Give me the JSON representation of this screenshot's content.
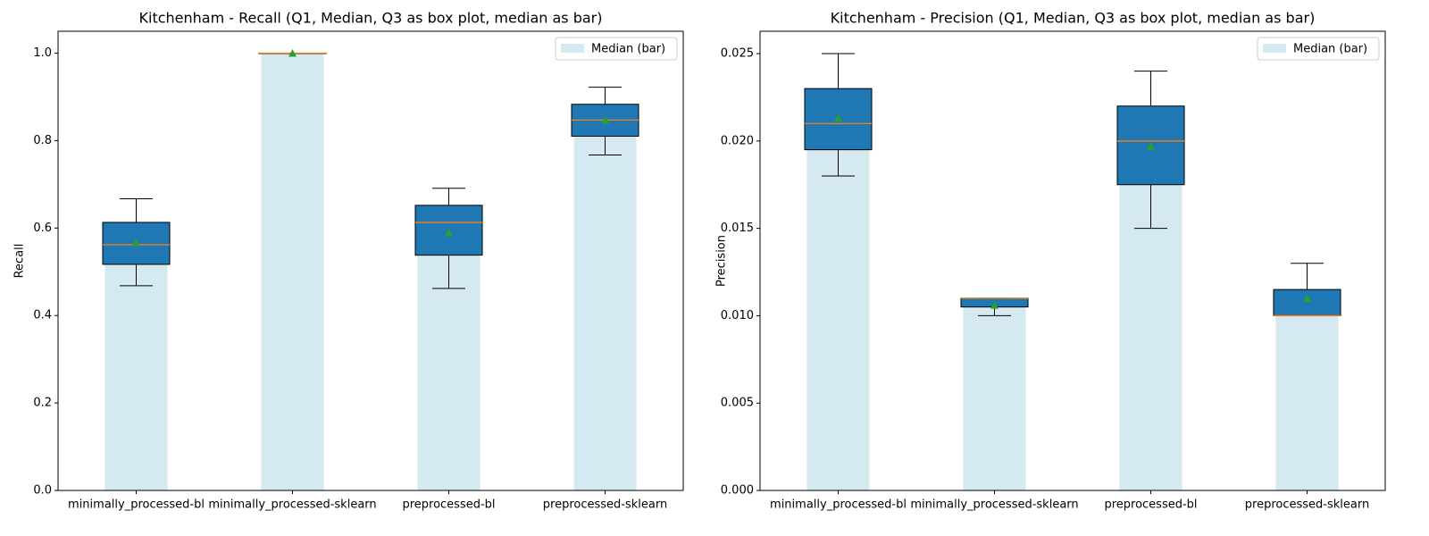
{
  "chart_data": [
    {
      "type": "box",
      "title": "Kitchenham - Recall (Q1, Median, Q3 as box plot, median as bar)",
      "ylabel": "Recall",
      "categories": [
        "minimally_processed-bl",
        "minimally_processed-sklearn",
        "preprocessed-bl",
        "preprocessed-sklearn"
      ],
      "boxes": [
        {
          "whislo": 0.468,
          "q1": 0.517,
          "median": 0.562,
          "q3": 0.613,
          "whishi": 0.667,
          "mean": 0.566
        },
        {
          "whislo": 1.0,
          "q1": 1.0,
          "median": 1.0,
          "q3": 1.0,
          "whishi": 1.0,
          "mean": 1.0
        },
        {
          "whislo": 0.462,
          "q1": 0.538,
          "median": 0.613,
          "q3": 0.652,
          "whishi": 0.691,
          "mean": 0.589
        },
        {
          "whislo": 0.767,
          "q1": 0.81,
          "median": 0.847,
          "q3": 0.883,
          "whishi": 0.922,
          "mean": 0.847
        }
      ],
      "ylim": [
        0,
        1.05
      ],
      "yticks": [
        {
          "value": 0,
          "label": "0.0"
        },
        {
          "value": 0.2,
          "label": "0.2"
        },
        {
          "value": 0.4,
          "label": "0.4"
        },
        {
          "value": 0.6,
          "label": "0.6"
        },
        {
          "value": 0.8,
          "label": "0.8"
        },
        {
          "value": 1,
          "label": "1.0"
        }
      ],
      "legend": {
        "label": "Median (bar)",
        "position": "upper right"
      },
      "colors": {
        "box": "#1f77b4",
        "median": "#ff7f0e",
        "mean": "#2ca02c",
        "bar": "#d4e9f0"
      }
    },
    {
      "type": "box",
      "title": "Kitchenham - Precision (Q1, Median, Q3 as box plot, median as bar)",
      "ylabel": "Precision",
      "categories": [
        "minimally_processed-bl",
        "minimally_processed-sklearn",
        "preprocessed-bl",
        "preprocessed-sklearn"
      ],
      "boxes": [
        {
          "whislo": 0.018,
          "q1": 0.0195,
          "median": 0.021,
          "q3": 0.023,
          "whishi": 0.025,
          "mean": 0.0213
        },
        {
          "whislo": 0.01,
          "q1": 0.0105,
          "median": 0.011,
          "q3": 0.011,
          "whishi": 0.011,
          "mean": 0.0106
        },
        {
          "whislo": 0.015,
          "q1": 0.0175,
          "median": 0.02,
          "q3": 0.022,
          "whishi": 0.024,
          "mean": 0.0197
        },
        {
          "whislo": 0.01,
          "q1": 0.01,
          "median": 0.01,
          "q3": 0.0115,
          "whishi": 0.013,
          "mean": 0.011
        }
      ],
      "ylim": [
        0,
        0.02628
      ],
      "yticks": [
        {
          "value": 0,
          "label": "0.000"
        },
        {
          "value": 0.005,
          "label": "0.005"
        },
        {
          "value": 0.01,
          "label": "0.010"
        },
        {
          "value": 0.015,
          "label": "0.015"
        },
        {
          "value": 0.02,
          "label": "0.020"
        },
        {
          "value": 0.025,
          "label": "0.025"
        }
      ],
      "legend": {
        "label": "Median (bar)",
        "position": "upper right"
      },
      "colors": {
        "box": "#1f77b4",
        "median": "#ff7f0e",
        "mean": "#2ca02c",
        "bar": "#d4e9f0"
      }
    }
  ]
}
